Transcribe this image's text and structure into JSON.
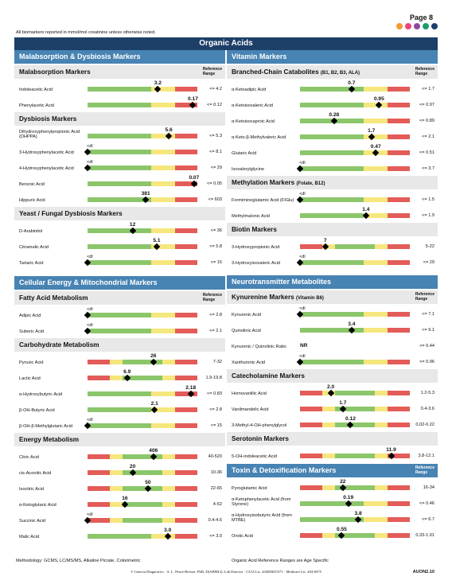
{
  "header": {
    "page_number": "Page 8",
    "note": "All biomarkers reported in mmol/mol creatinine unless otherwise noted.",
    "dot_colors": [
      "#f29a31",
      "#e8477a",
      "#8d4a9e",
      "#1f9a6d",
      "#1d3f68"
    ]
  },
  "title": "Organic Acids",
  "colors": {
    "green": "#8cc66b",
    "yellow": "#f5e77d",
    "red": "#e35c59"
  },
  "columns": [
    {
      "sections": [
        {
          "title": "Malabsorption & Dysbiosis Markers",
          "subsections": [
            {
              "title": "Malabsorption Markers",
              "ref_header": [
                "Reference",
                "Range"
              ],
              "items": [
                {
                  "label": "Indoleacetic Acid",
                  "bar": "GY",
                  "value": "3.2",
                  "pos": 0.64,
                  "ref": "<= 4.2"
                },
                {
                  "label": "Phenylacetic Acid",
                  "bar": "GY",
                  "value": "0.17",
                  "pos": 0.96,
                  "ref": "<= 0.12"
                }
              ]
            },
            {
              "title": "Dysbiosis Markers",
              "items": [
                {
                  "label": "Dihydroxyphenylpropionic Acid (DHPPA)",
                  "bar": "GY",
                  "value": "5.6",
                  "pos": 0.74,
                  "ref": "<= 5.3"
                },
                {
                  "label": "3-Hydroxyphenylacetic Acid",
                  "bar": "GY",
                  "value": "<dl",
                  "pos": 0.0,
                  "ref": "<= 8.1"
                },
                {
                  "label": "4-Hydroxyphenylacetic Acid",
                  "bar": "GY",
                  "value": "<dl",
                  "pos": 0.0,
                  "ref": "<= 29"
                },
                {
                  "label": "Benzoic Acid",
                  "bar": "GY",
                  "value": "0.07",
                  "pos": 0.97,
                  "ref": "<= 0.05"
                },
                {
                  "label": "Hippuric Acid",
                  "bar": "GY",
                  "value": "381",
                  "pos": 0.53,
                  "ref": "<= 603"
                }
              ]
            },
            {
              "title": "Yeast / Fungal Dysbiosis Markers",
              "items": [
                {
                  "label": "D-Arabinitol",
                  "bar": "GY",
                  "value": "12",
                  "pos": 0.41,
                  "ref": "<= 36"
                },
                {
                  "label": "Citramalic Acid",
                  "bar": "GY",
                  "value": "5.1",
                  "pos": 0.63,
                  "ref": "<= 5.8"
                },
                {
                  "label": "Tartaric Acid",
                  "bar": "GY",
                  "value": "<dl",
                  "pos": 0.0,
                  "ref": "<= 15"
                }
              ]
            }
          ]
        },
        {
          "title": "Cellular Energy & Mitochondrial Markers",
          "subsections": [
            {
              "title": "Fatty Acid Metabolism",
              "ref_header": [
                "Reference",
                "Range"
              ],
              "items": [
                {
                  "label": "Adipic Acid",
                  "bar": "GY",
                  "value": "<dl",
                  "pos": 0.0,
                  "ref": "<= 2.8"
                },
                {
                  "label": "Suberic Acid",
                  "bar": "GY",
                  "value": "<dl",
                  "pos": 0.0,
                  "ref": "<= 2.1"
                }
              ]
            },
            {
              "title": "Carbohydrate Metabolism",
              "items": [
                {
                  "label": "Pyruvic Acid",
                  "bar": "RGR",
                  "value": "26",
                  "pos": 0.6,
                  "ref": "7-32"
                },
                {
                  "label": "Lactic Acid",
                  "bar": "RGR",
                  "value": "6.9",
                  "pos": 0.36,
                  "ref": "1.9-19.8"
                },
                {
                  "label": "α-Hydroxybutyric Acid",
                  "bar": "GY",
                  "value": "2.18",
                  "pos": 0.94,
                  "ref": "<= 0.83"
                },
                {
                  "label": "β-OH-Butyric Acid",
                  "bar": "GY",
                  "value": "2.1",
                  "pos": 0.61,
                  "ref": "<= 2.8"
                },
                {
                  "label": "β-OH-β-Methylglutaric Acid",
                  "bar": "GY",
                  "value": "<dl",
                  "pos": 0.0,
                  "ref": "<= 15"
                }
              ]
            },
            {
              "title": "Energy Metabolism",
              "items": [
                {
                  "label": "Citric Acid",
                  "bar": "RGR",
                  "value": "406",
                  "pos": 0.6,
                  "ref": "40-520"
                },
                {
                  "label": "cis-Aconitic Acid",
                  "bar": "RGR",
                  "value": "20",
                  "pos": 0.41,
                  "ref": "10-36"
                },
                {
                  "label": "Isocitric Acid",
                  "bar": "RGR",
                  "value": "50",
                  "pos": 0.55,
                  "ref": "22-65"
                },
                {
                  "label": "α-Ketoglutaric Acid",
                  "bar": "RGR",
                  "value": "16",
                  "pos": 0.34,
                  "ref": "4-52"
                },
                {
                  "label": "Succinic Acid",
                  "bar": "RGR",
                  "value": "<dl",
                  "pos": 0.0,
                  "ref": "0.4-4.6"
                },
                {
                  "label": "Malic Acid",
                  "bar": "GY",
                  "value": "3.0",
                  "pos": 0.73,
                  "ref": "<= 3.0"
                }
              ]
            }
          ]
        }
      ]
    },
    {
      "sections": [
        {
          "title": "Vitamin Markers",
          "subsections": [
            {
              "title": "Branched-Chain Catabolites",
              "note": "(B1, B2, B3, ALA)",
              "ref_header": [
                "Reference",
                "Range"
              ],
              "items": [
                {
                  "label": "α-Ketoadipic Acid",
                  "bar": "GY",
                  "value": "0.7",
                  "pos": 0.47,
                  "ref": "<= 1.7"
                },
                {
                  "label": "α-Ketoisovaleric Acid",
                  "bar": "GY",
                  "value": "0.95",
                  "pos": 0.72,
                  "ref": "<= 0.97"
                },
                {
                  "label": "α-Ketoisocaproic Acid",
                  "bar": "GY",
                  "value": "0.28",
                  "pos": 0.31,
                  "ref": "<= 0.89"
                },
                {
                  "label": "α-Keto-β-Methylvaleric Acid",
                  "bar": "GY",
                  "value": "1.7",
                  "pos": 0.65,
                  "ref": "<= 2.1"
                },
                {
                  "label": "Glutaric Acid",
                  "bar": "GY",
                  "value": "0.47",
                  "pos": 0.69,
                  "ref": "<= 0.51"
                },
                {
                  "label": "Isovalerylglycine",
                  "bar": "GY",
                  "value": "<dl",
                  "pos": 0.0,
                  "ref": "<= 3.7"
                }
              ]
            },
            {
              "title": "Methylation Markers",
              "note": "(Folate, B12)",
              "items": [
                {
                  "label": "Formiminoglutamic Acid (FIGlu)",
                  "bar": "GY",
                  "value": "<dl",
                  "pos": 0.0,
                  "ref": "<= 1.5"
                },
                {
                  "label": "Methylmalonic Acid",
                  "bar": "GY",
                  "value": "1.4",
                  "pos": 0.6,
                  "ref": "<= 1.9"
                }
              ]
            },
            {
              "title": "Biotin Markers",
              "items": [
                {
                  "label": "3-Hydroxypropionic Acid",
                  "bar": "RGR",
                  "value": "7",
                  "pos": 0.23,
                  "ref": "5-22"
                },
                {
                  "label": "3-Hydroxyisovaleric Acid",
                  "bar": "GY",
                  "value": "<dl",
                  "pos": 0.0,
                  "ref": "<= 29"
                }
              ]
            }
          ]
        },
        {
          "title": "Neurotransmitter Metabolites",
          "subsections": [
            {
              "title": "Kynurenine Markers",
              "note": "(Vitamin B6)",
              "ref_header": [
                "Reference",
                "Range"
              ],
              "items": [
                {
                  "label": "Kynurenic Acid",
                  "bar": "GY",
                  "value": "<dl",
                  "pos": 0.0,
                  "ref": "<= 7.1"
                },
                {
                  "label": "Quinolinic Acid",
                  "bar": "GY",
                  "value": "3.4",
                  "pos": 0.47,
                  "ref": "<= 9.1"
                },
                {
                  "label": "Kynurenic / Quinolinic Ratio",
                  "bar": "NR",
                  "value": "NR",
                  "pos": 0.0,
                  "ref": ">= 0.44"
                },
                {
                  "label": "Xanthurenic Acid",
                  "bar": "GY",
                  "value": "<dl",
                  "pos": 0.0,
                  "ref": "<= 0.96"
                }
              ]
            },
            {
              "title": "Catecholamine Markers",
              "items": [
                {
                  "label": "Homovanillic Acid",
                  "bar": "RGR",
                  "value": "2.0",
                  "pos": 0.28,
                  "ref": "1.2-5.3"
                },
                {
                  "label": "Vanilmandelic Acid",
                  "bar": "RGR",
                  "value": "1.7",
                  "pos": 0.39,
                  "ref": "0.4-3.6"
                },
                {
                  "label": "3-Methyl-4-OH-phenylglycol",
                  "bar": "RGR",
                  "value": "0.12",
                  "pos": 0.46,
                  "ref": "0.02-0.22"
                }
              ]
            },
            {
              "title": "Serotonin Markers",
              "items": [
                {
                  "label": "5-OH-indoleacetic Acid",
                  "bar": "RGR",
                  "value": "11.9",
                  "pos": 0.83,
                  "ref": "3.8-12.1"
                }
              ]
            }
          ]
        },
        {
          "title": "Toxin & Detoxification Markers",
          "ref_header": [
            "Reference",
            "Range"
          ],
          "subsections": [
            {
              "title": "",
              "items": [
                {
                  "label": "Pyroglutamic Acid",
                  "bar": "RGR",
                  "value": "22",
                  "pos": 0.39,
                  "ref": "16-34"
                },
                {
                  "label": "α-Ketophenylacetic Acid (from Styrene)",
                  "bar": "GY",
                  "value": "0.19",
                  "pos": 0.44,
                  "ref": "<= 0.46"
                },
                {
                  "label": "α-Hydroxyisobutyric Acid (from MTBE)",
                  "bar": "GY",
                  "value": "3.8",
                  "pos": 0.53,
                  "ref": "<= 6.7"
                },
                {
                  "label": "Orotic Acid",
                  "bar": "RGR",
                  "value": "0.55",
                  "pos": 0.38,
                  "ref": "0.33-1.01"
                }
              ]
            }
          ]
        }
      ]
    }
  ],
  "footer": {
    "methodology": "Methodology: GCMS, LC/MS/MS, Alkaline Picrate, Colorimetric",
    "age_note": "Organic Acid Reference Ranges are Age Specific",
    "copyright": "© Genova Diagnostics · A. L. Peace-Brewer, PhD, D(ABMLI), Lab Director · CLIA Lic. #34D0655571 · Medicare Lic. #34-8475",
    "code": "AUON2.10"
  }
}
